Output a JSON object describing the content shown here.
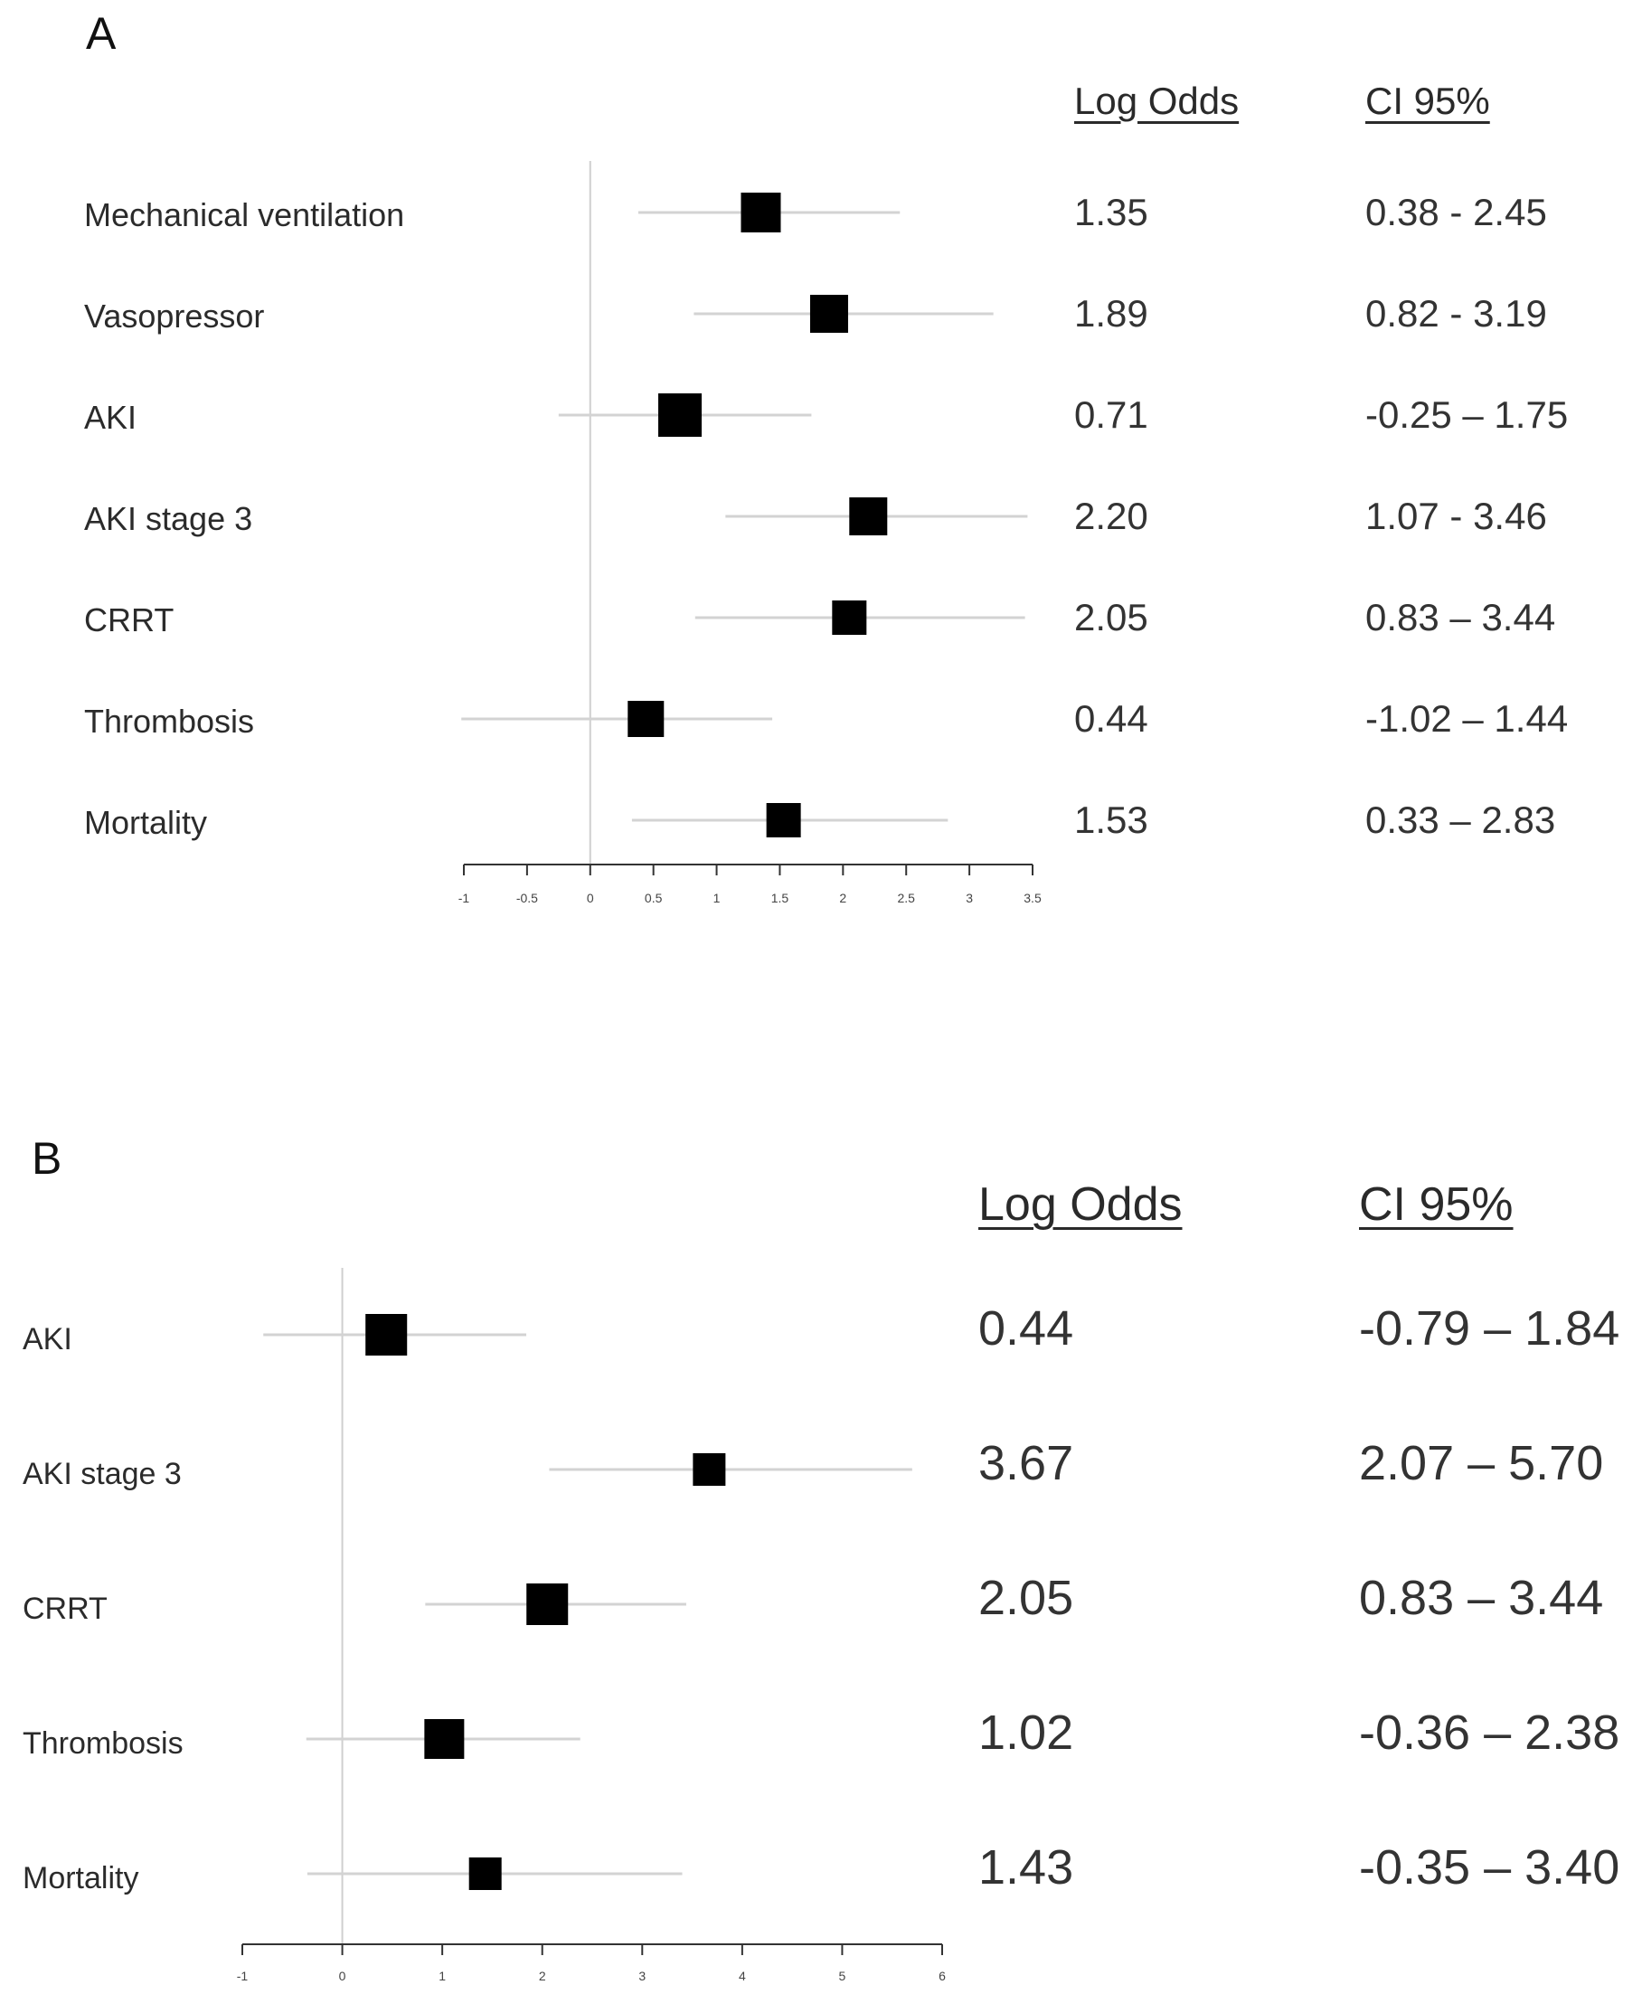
{
  "chart_data": [
    {
      "type": "forest",
      "panel_label": "A",
      "header_log_odds": "Log Odds",
      "header_ci": "CI 95%",
      "xlim": [
        -1,
        3.5
      ],
      "ticks": [
        -1,
        -0.5,
        0,
        0.5,
        1,
        1.5,
        2,
        2.5,
        3,
        3.5
      ],
      "tick_labels": [
        "-1",
        "-0.5",
        "0",
        "0.5",
        "1",
        "1.5",
        "2",
        "2.5",
        "3",
        "3.5"
      ],
      "reference_line": 0,
      "rows": [
        {
          "label": "Mechanical ventilation",
          "estimate": 1.35,
          "lower": 0.38,
          "upper": 2.45,
          "estimate_text": "1.35",
          "ci_text": "0.38 - 2.45",
          "marker_size": 44
        },
        {
          "label": "Vasopressor",
          "estimate": 1.89,
          "lower": 0.82,
          "upper": 3.19,
          "estimate_text": "1.89",
          "ci_text": "0.82 - 3.19",
          "marker_size": 42
        },
        {
          "label": "AKI",
          "estimate": 0.71,
          "lower": -0.25,
          "upper": 1.75,
          "estimate_text": "0.71",
          "ci_text": "-0.25 – 1.75",
          "marker_size": 48
        },
        {
          "label": "AKI stage 3",
          "estimate": 2.2,
          "lower": 1.07,
          "upper": 3.46,
          "estimate_text": "2.20",
          "ci_text": "1.07 - 3.46",
          "marker_size": 42
        },
        {
          "label": "CRRT",
          "estimate": 2.05,
          "lower": 0.83,
          "upper": 3.44,
          "estimate_text": "2.05",
          "ci_text": "0.83 – 3.44",
          "marker_size": 38
        },
        {
          "label": "Thrombosis",
          "estimate": 0.44,
          "lower": -1.02,
          "upper": 1.44,
          "estimate_text": "0.44",
          "ci_text": "-1.02 – 1.44",
          "marker_size": 40
        },
        {
          "label": "Mortality",
          "estimate": 1.53,
          "lower": 0.33,
          "upper": 2.83,
          "estimate_text": "1.53",
          "ci_text": "0.33 – 2.83",
          "marker_size": 38
        }
      ]
    },
    {
      "type": "forest",
      "panel_label": "B",
      "header_log_odds": "Log Odds",
      "header_ci": "CI 95%",
      "xlim": [
        -1,
        6
      ],
      "ticks": [
        -1,
        0,
        1,
        2,
        3,
        4,
        5,
        6
      ],
      "tick_labels": [
        "-1",
        "0",
        "1",
        "2",
        "3",
        "4",
        "5",
        "6"
      ],
      "reference_line": 0,
      "rows": [
        {
          "label": "AKI",
          "estimate": 0.44,
          "lower": -0.79,
          "upper": 1.84,
          "estimate_text": "0.44",
          "ci_text": "-0.79 – 1.84",
          "marker_size": 46
        },
        {
          "label": "AKI stage 3",
          "estimate": 3.67,
          "lower": 2.07,
          "upper": 5.7,
          "estimate_text": "3.67",
          "ci_text": "2.07 – 5.70",
          "marker_size": 36
        },
        {
          "label": "CRRT",
          "estimate": 2.05,
          "lower": 0.83,
          "upper": 3.44,
          "estimate_text": "2.05",
          "ci_text": "0.83 – 3.44",
          "marker_size": 46
        },
        {
          "label": "Thrombosis",
          "estimate": 1.02,
          "lower": -0.36,
          "upper": 2.38,
          "estimate_text": "1.02",
          "ci_text": "-0.36 – 2.38",
          "marker_size": 44
        },
        {
          "label": "Mortality",
          "estimate": 1.43,
          "lower": -0.35,
          "upper": 3.4,
          "estimate_text": "1.43",
          "ci_text": "-0.35 – 3.40",
          "marker_size": 36
        }
      ]
    }
  ]
}
